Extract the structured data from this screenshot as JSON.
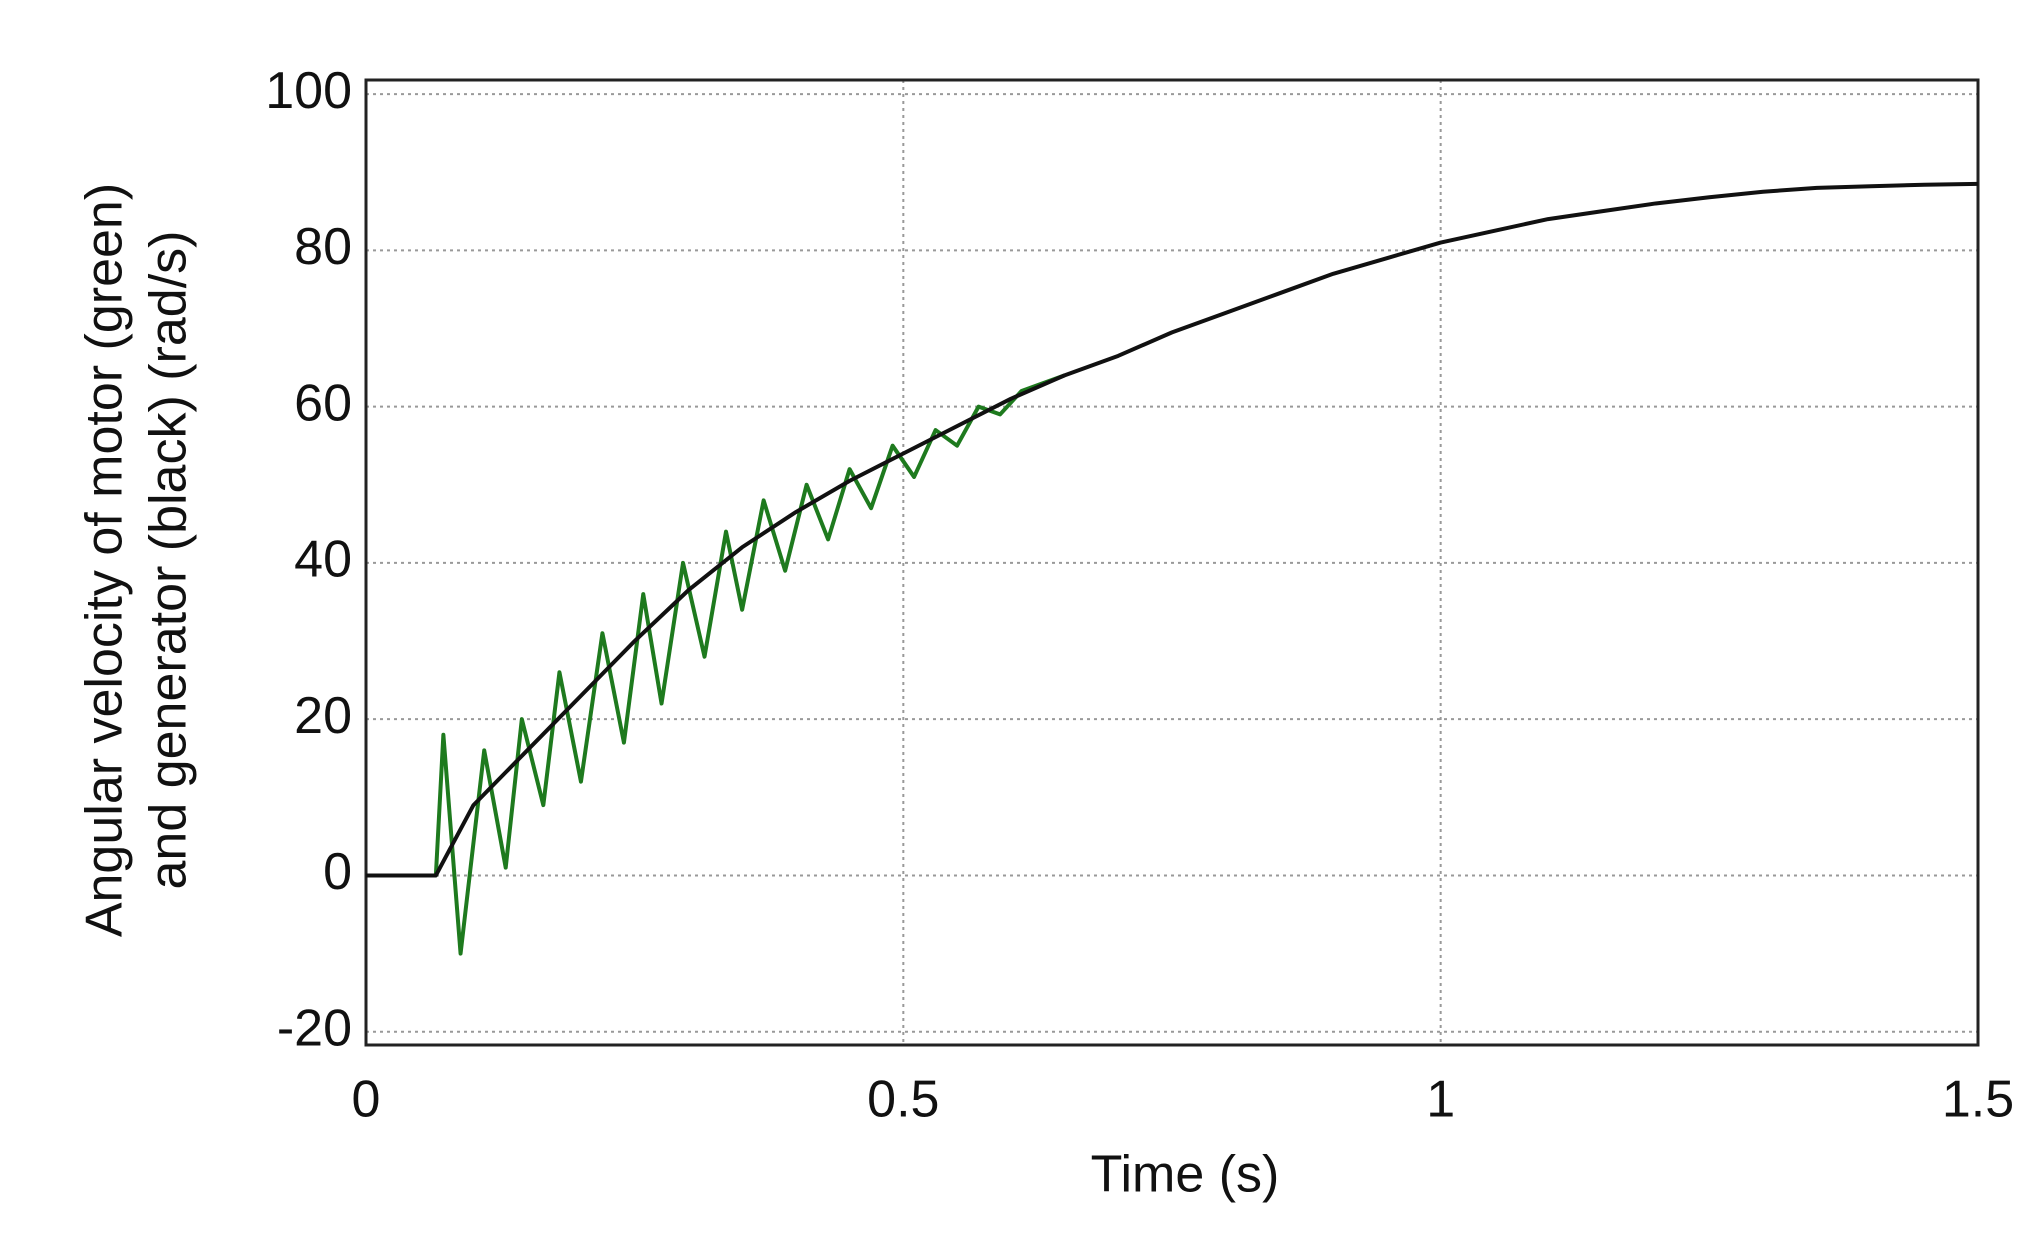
{
  "chart_data": {
    "type": "line",
    "ylabel": [
      "Angular velocity of motor (green)",
      "and generator (black) (rad/s)"
    ],
    "xlabel": "Time (s)",
    "xlim": [
      0,
      1.5
    ],
    "ylim": [
      -21.7,
      101.8
    ],
    "xticks": [
      0,
      0.5,
      1,
      1.5
    ],
    "yticks": [
      -20,
      0,
      20,
      40,
      60,
      80,
      100
    ],
    "grid": true,
    "series": [
      {
        "color": "#1e7a1e",
        "x": [
          0,
          0.065,
          0.072,
          0.088,
          0.11,
          0.13,
          0.145,
          0.165,
          0.18,
          0.2,
          0.22,
          0.24,
          0.258,
          0.275,
          0.295,
          0.315,
          0.335,
          0.35,
          0.37,
          0.39,
          0.41,
          0.43,
          0.45,
          0.47,
          0.49,
          0.51,
          0.53,
          0.55,
          0.57,
          0.59,
          0.61,
          0.65
        ],
        "values": [
          0,
          0,
          18,
          -10,
          16,
          1,
          20,
          9,
          26,
          12,
          31,
          17,
          36,
          22,
          40,
          28,
          44,
          34,
          48,
          39,
          50,
          43,
          52,
          47,
          55,
          51,
          57,
          55,
          60,
          59,
          62,
          64
        ]
      },
      {
        "color": "#111111",
        "x": [
          0,
          0.065,
          0.1,
          0.15,
          0.2,
          0.25,
          0.3,
          0.35,
          0.4,
          0.45,
          0.5,
          0.55,
          0.6,
          0.65,
          0.7,
          0.75,
          0.8,
          0.85,
          0.9,
          0.95,
          1.0,
          1.05,
          1.1,
          1.15,
          1.2,
          1.25,
          1.3,
          1.35,
          1.4,
          1.45,
          1.5
        ],
        "values": [
          0,
          0,
          9,
          16,
          23,
          30,
          36.5,
          42,
          46.5,
          50.5,
          54,
          57.5,
          61,
          64,
          66.5,
          69.5,
          72,
          74.5,
          77,
          79,
          81,
          82.5,
          84,
          85,
          86,
          86.8,
          87.5,
          88,
          88.2,
          88.4,
          88.5
        ]
      }
    ]
  }
}
